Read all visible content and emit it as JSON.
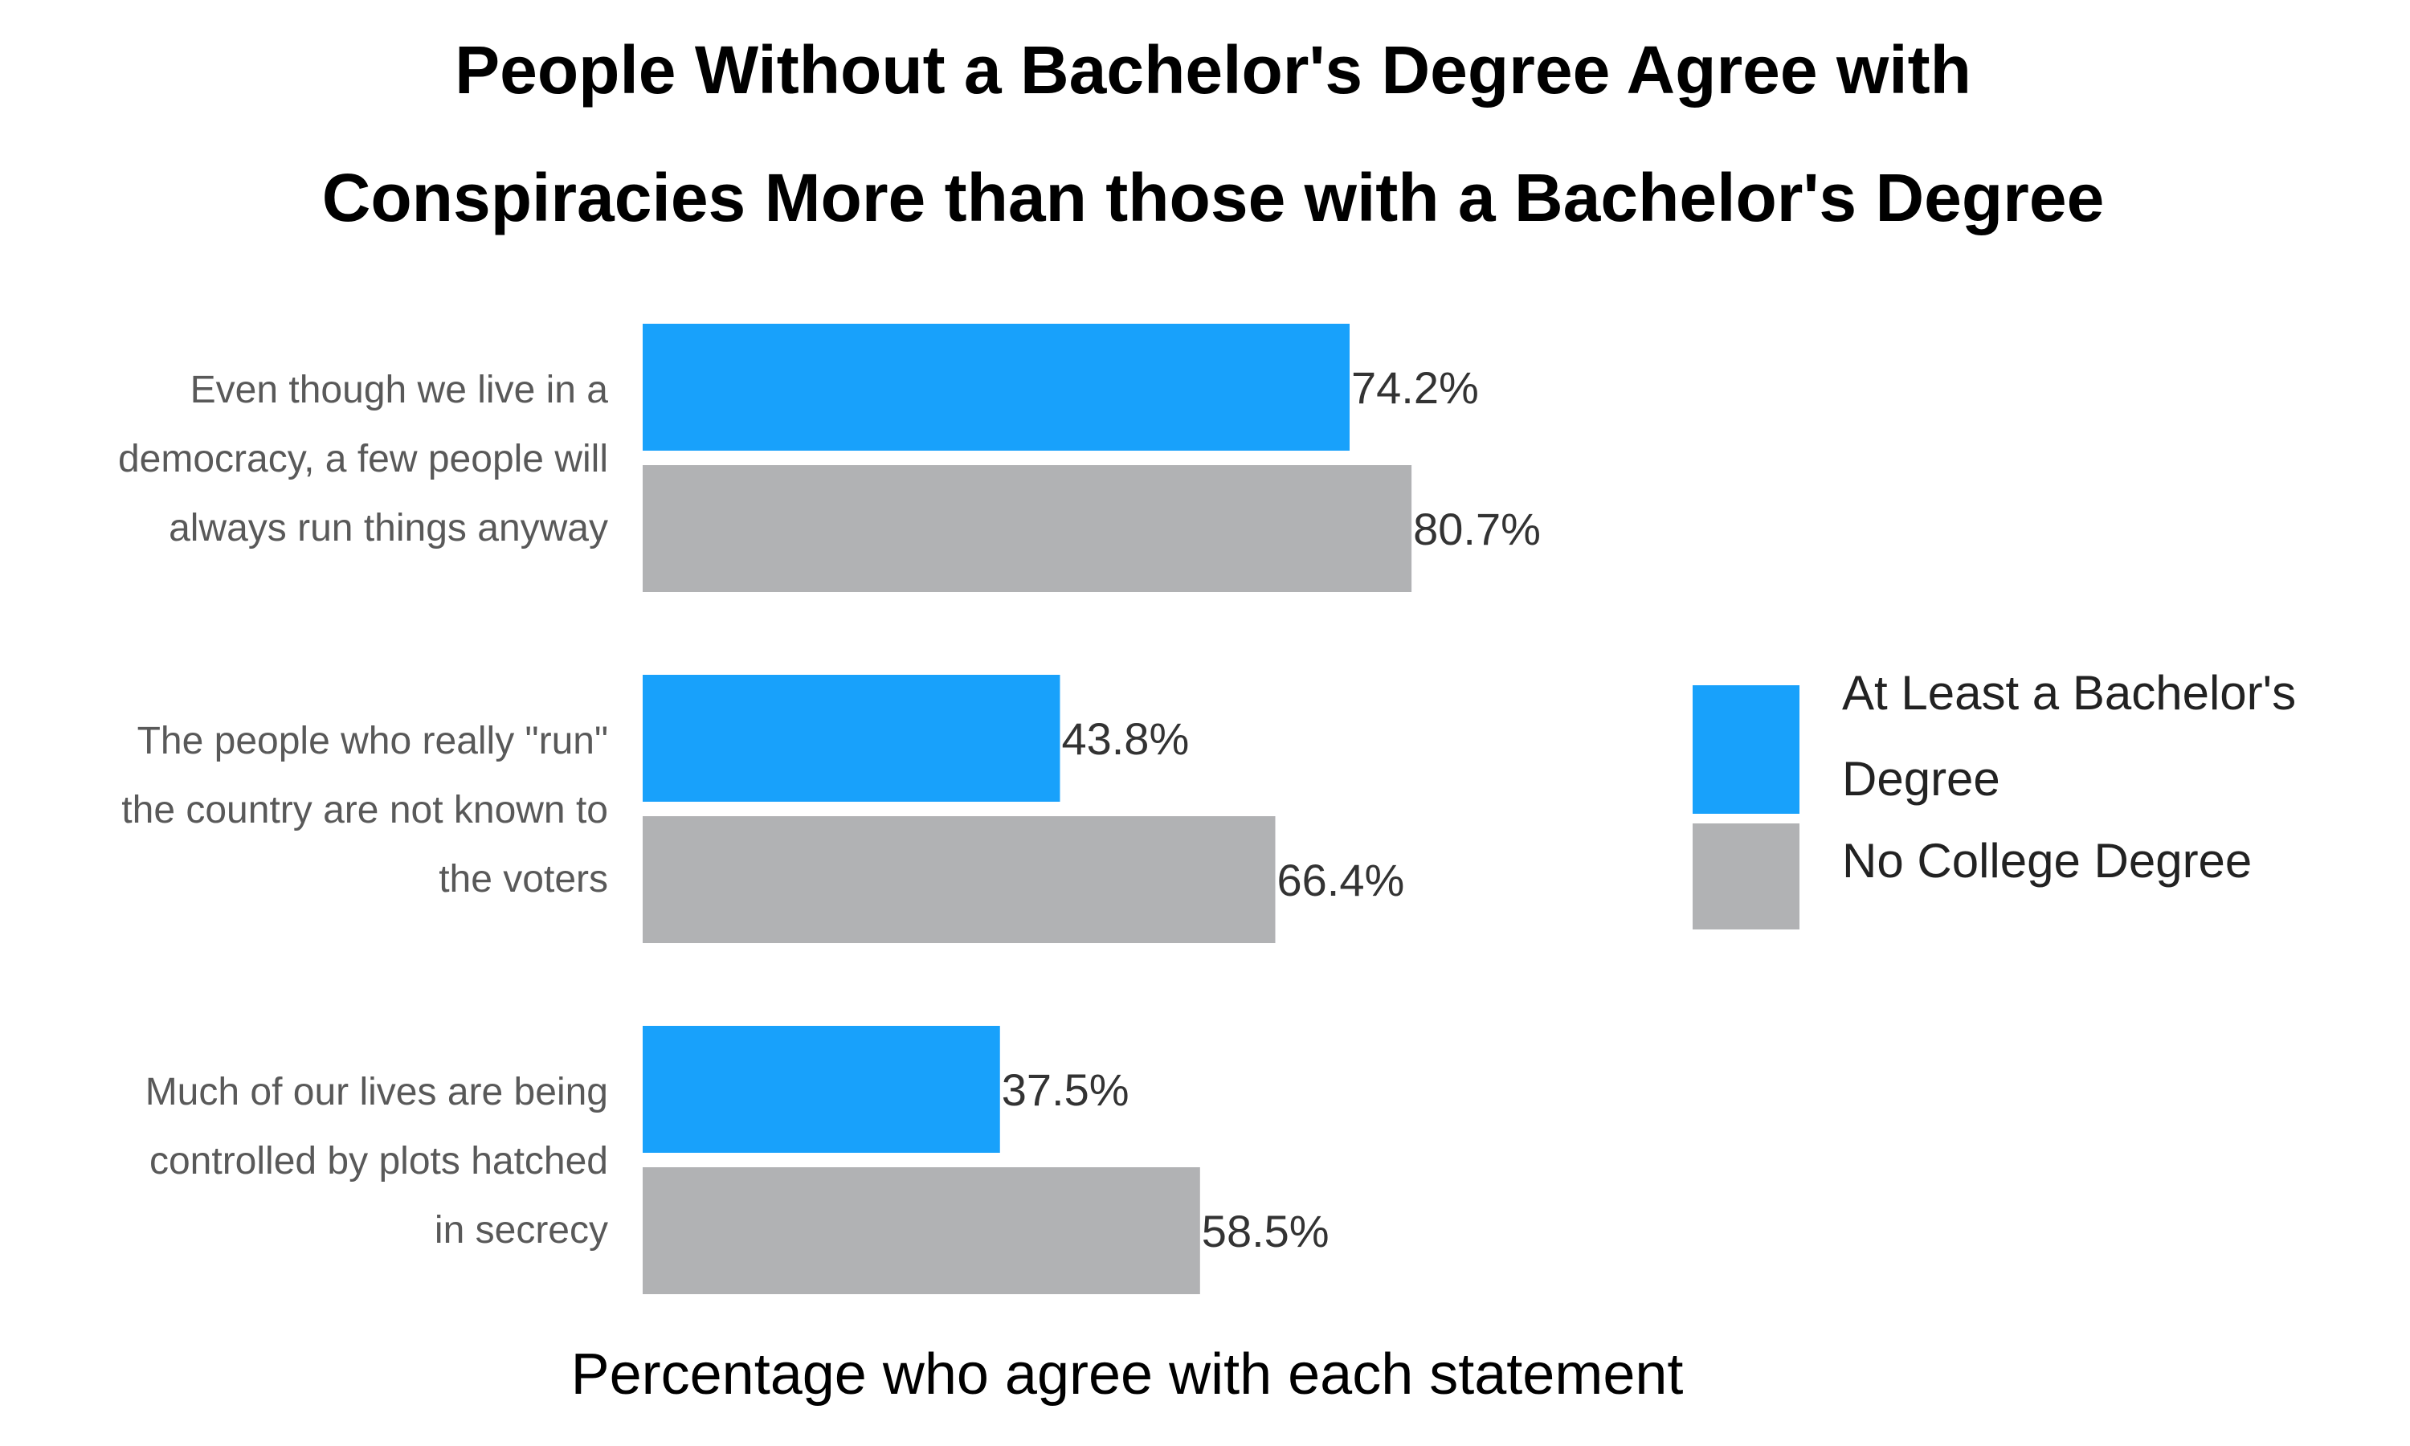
{
  "chart_data": {
    "type": "bar",
    "orientation": "horizontal",
    "title_lines": [
      "People Without a Bachelor's Degree Agree with",
      "Conspiracies More than those with a Bachelor's Degree"
    ],
    "xlabel": "Percentage who agree with each statement",
    "ylabel": "",
    "categories": [
      [
        "Even though we live in a",
        "democracy, a few people will",
        "always run things anyway"
      ],
      [
        "The people who really \"run\"",
        "the country are not known to",
        "the voters"
      ],
      [
        "Much of our lives are being",
        "controlled by plots hatched",
        "in secrecy"
      ]
    ],
    "series": [
      {
        "name": "At Least a Bachelor's Degree",
        "legend_lines": [
          "At Least a Bachelor's",
          "Degree"
        ],
        "color": "#18a1fb",
        "values": [
          74.2,
          43.8,
          37.5
        ],
        "labels": [
          "74.2%",
          "43.8%",
          "37.5%"
        ]
      },
      {
        "name": "No College Degree",
        "legend_lines": [
          "No College Degree"
        ],
        "color": "#b1b2b4",
        "values": [
          80.7,
          66.4,
          58.5
        ],
        "labels": [
          "80.7%",
          "66.4%",
          "58.5%"
        ]
      }
    ],
    "xlim": [
      0,
      100
    ],
    "grid": false,
    "legend_position": "right"
  }
}
